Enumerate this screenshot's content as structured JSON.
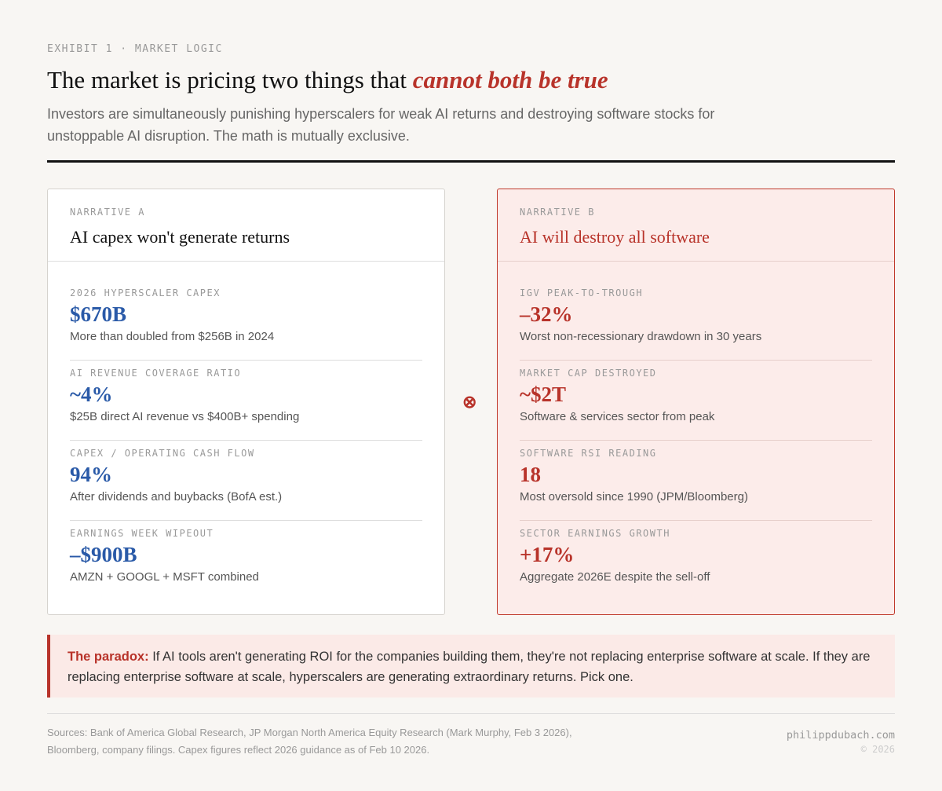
{
  "header": {
    "eyebrow": "EXHIBIT 1 · MARKET LOGIC",
    "title_plain": "The market is pricing two things that ",
    "title_emph": "cannot both be true",
    "subtitle": "Investors are simultaneously punishing hyperscalers for weak AI returns and destroying software stocks for unstoppable AI disruption. The math is mutually exclusive."
  },
  "narrative_a": {
    "label": "NARRATIVE A",
    "title": "AI capex won't generate returns",
    "items": [
      {
        "label": "2026 HYPERSCALER CAPEX",
        "value": "$670B",
        "desc": "More than doubled from $256B in 2024"
      },
      {
        "label": "AI REVENUE COVERAGE RATIO",
        "value": "~4%",
        "desc": "$25B direct AI revenue vs $400B+ spending"
      },
      {
        "label": "CAPEX / OPERATING CASH FLOW",
        "value": "94%",
        "desc": "After dividends and buybacks (BofA est.)"
      },
      {
        "label": "EARNINGS WEEK WIPEOUT",
        "value": "–$900B",
        "desc": "AMZN + GOOGL + MSFT combined"
      }
    ]
  },
  "narrative_b": {
    "label": "NARRATIVE B",
    "title": "AI will destroy all software",
    "items": [
      {
        "label": "IGV PEAK-TO-TROUGH",
        "value": "–32%",
        "desc": "Worst non-recessionary drawdown in 30 years"
      },
      {
        "label": "MARKET CAP DESTROYED",
        "value": "~$2T",
        "desc": "Software & services sector from peak"
      },
      {
        "label": "SOFTWARE RSI READING",
        "value": "18",
        "desc": "Most oversold since 1990 (JPM/Bloomberg)"
      },
      {
        "label": "SECTOR EARNINGS GROWTH",
        "value": "+17%",
        "desc": "Aggregate 2026E despite the sell-off"
      }
    ]
  },
  "divider_icon": "⊗",
  "callout": {
    "lead": "The paradox:",
    "text": " If AI tools aren't generating ROI for the companies building them, they're not replacing enterprise software at scale. If they are replacing enterprise software at scale, hyperscalers are generating extraordinary returns. Pick one."
  },
  "footer": {
    "sources": "Sources: Bank of America Global Research, JP Morgan North America Equity Research (Mark Murphy, Feb 3 2026), Bloomberg, company filings. Capex figures reflect 2026 guidance as of Feb 10 2026.",
    "site": "philippdubach.com",
    "copyright": "© 2026"
  },
  "colors": {
    "blue": "#2a5aa8",
    "red": "#b8332a",
    "background": "#f8f6f3"
  }
}
